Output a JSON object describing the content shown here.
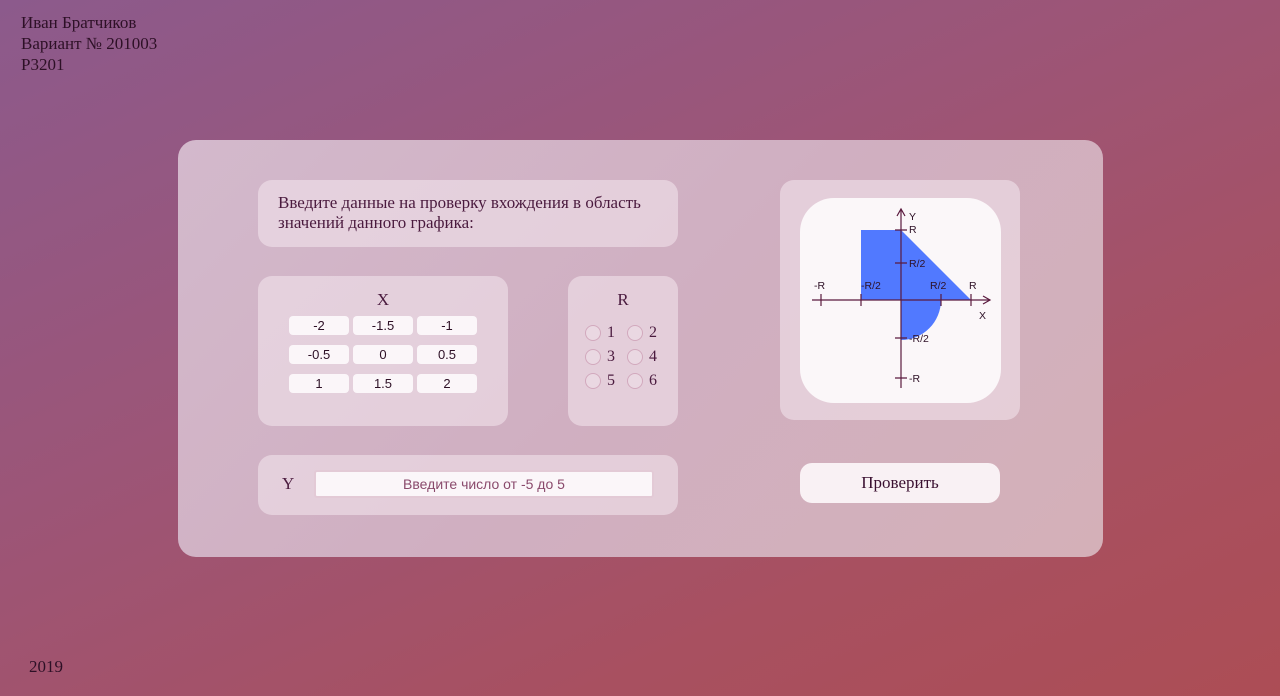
{
  "header": {
    "author": "Иван Братчиков",
    "variant": "Вариант № 201003",
    "group": "P3201"
  },
  "footer": {
    "year": "2019"
  },
  "form": {
    "prompt": "Введите данные на проверку вхождения в область значений данного графика:",
    "x": {
      "title": "X",
      "options": [
        "-2",
        "-1.5",
        "-1",
        "-0.5",
        "0",
        "0.5",
        "1",
        "1.5",
        "2"
      ]
    },
    "r": {
      "title": "R",
      "options": [
        "1",
        "2",
        "3",
        "4",
        "5",
        "6"
      ]
    },
    "y": {
      "label": "Y",
      "placeholder": "Введите число от -5 до 5"
    },
    "submit_label": "Проверить"
  },
  "graph": {
    "axis_x": "X",
    "axis_y": "Y",
    "labels": {
      "r": "R",
      "half_r": "R/2",
      "neg_r": "-R",
      "neg_half_r": "-R/2"
    },
    "fill_color": "#5179ff",
    "axis_color": "#5a1a3e"
  }
}
